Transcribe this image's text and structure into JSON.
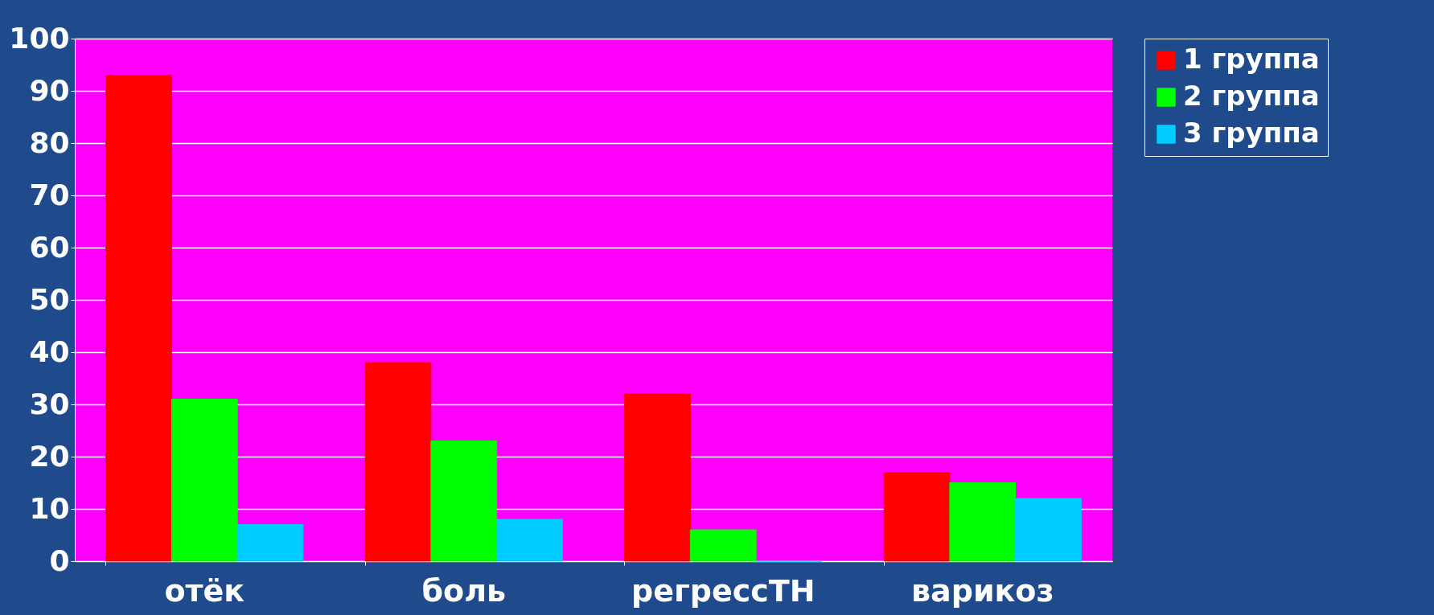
{
  "chart_data": {
    "type": "bar",
    "categories": [
      "отёк",
      "боль",
      "регрессТН",
      "варикоз"
    ],
    "series": [
      {
        "name": "1 группа",
        "color": "#ff0000",
        "values": [
          93,
          38,
          32,
          17
        ]
      },
      {
        "name": "2 группа",
        "color": "#00ff00",
        "values": [
          31,
          23,
          6,
          15
        ]
      },
      {
        "name": "3 группа",
        "color": "#00ccff",
        "values": [
          7,
          8,
          0,
          12
        ]
      }
    ],
    "ylim": [
      0,
      100
    ],
    "yticks": [
      0,
      10,
      20,
      30,
      40,
      50,
      60,
      70,
      80,
      90,
      100
    ],
    "grid": "y",
    "legend": "right"
  }
}
